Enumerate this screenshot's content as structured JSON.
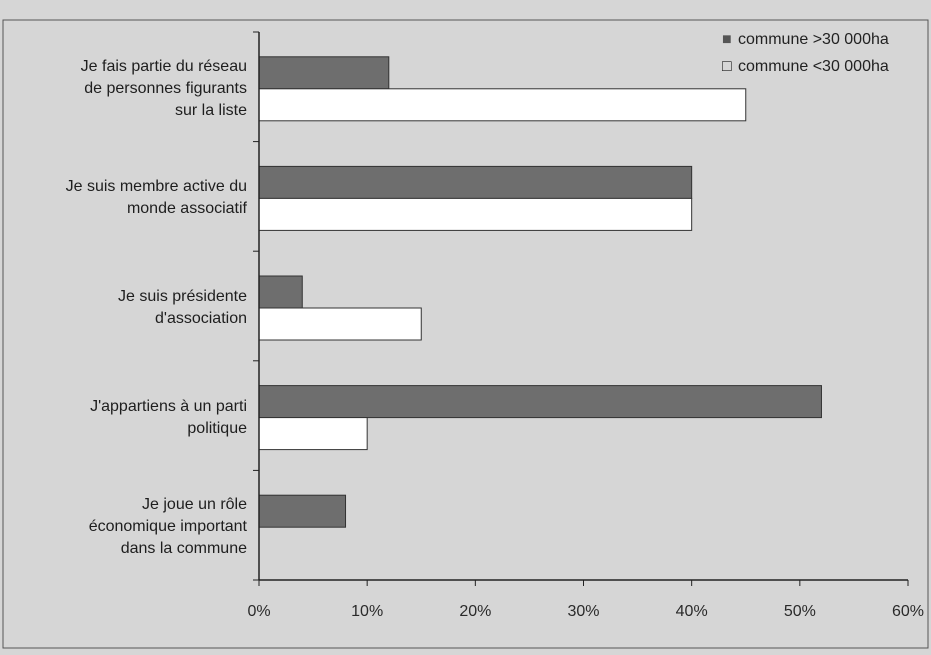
{
  "chart_data": {
    "type": "bar",
    "orientation": "horizontal",
    "title": "",
    "xlabel": "",
    "ylabel": "",
    "categories": [
      "Je fais partie du réseau de personnes figurants sur la liste",
      "Je suis membre active du monde associatif",
      "Je suis présidente d'association",
      "J'appartiens à un parti politique",
      "Je joue un rôle économique important dans la commune"
    ],
    "category_lines": [
      [
        "Je fais partie du réseau",
        "de personnes figurants",
        "sur la liste"
      ],
      [
        "Je suis membre active du",
        "monde associatif"
      ],
      [
        "Je suis présidente",
        "d'association"
      ],
      [
        "J'appartiens à un parti",
        "politique"
      ],
      [
        "Je joue un rôle",
        "économique important",
        "dans la commune"
      ]
    ],
    "series": [
      {
        "name": "commune >30 000ha",
        "color": "#6e6e6e",
        "values": [
          12,
          40,
          4,
          52,
          8
        ]
      },
      {
        "name": "commune <30 000ha",
        "color": "#ffffff",
        "values": [
          45,
          40,
          15,
          10,
          0
        ]
      }
    ],
    "legend_marker_filled": "■",
    "legend_marker_empty": "□",
    "xlim": [
      0,
      60
    ],
    "xticks": [
      0,
      10,
      20,
      30,
      40,
      50,
      60
    ],
    "xtick_labels": [
      "0%",
      "10%",
      "20%",
      "30%",
      "40%",
      "50%",
      "60%"
    ],
    "grid": false,
    "legend_position": "top-right"
  }
}
